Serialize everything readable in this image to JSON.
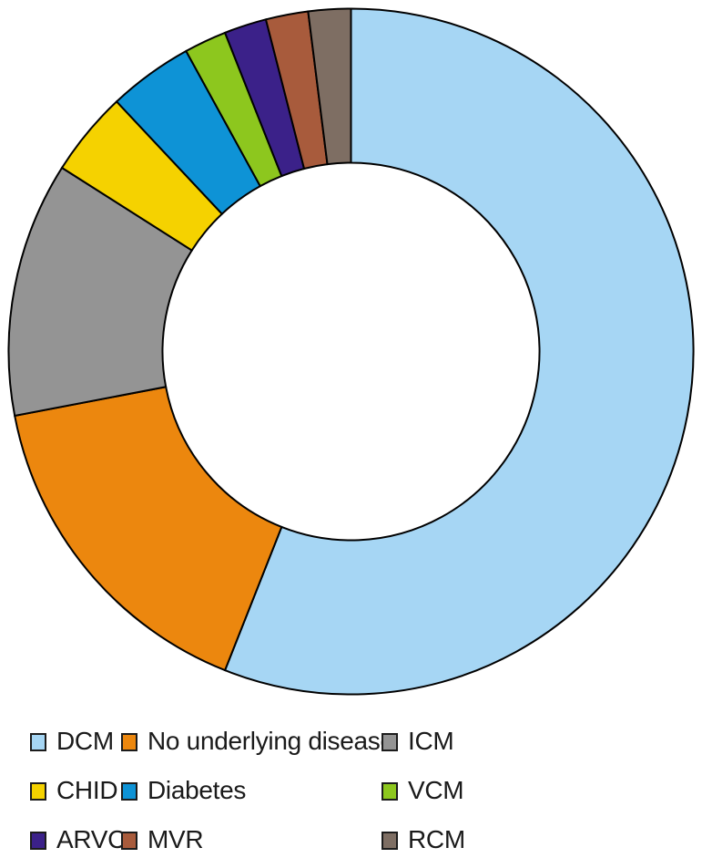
{
  "chart_data": {
    "type": "pie",
    "subtype": "donut",
    "title": "",
    "inner_radius_ratio": 0.55,
    "start_angle_deg": 0,
    "direction": "clockwise",
    "values_unit": "percent of circle (estimated from arc angles; no numeric labels shown in figure)",
    "outline_color": "#000000",
    "legend_position": "bottom",
    "legend_columns": 3,
    "series": [
      {
        "label": "DCM",
        "value": 56,
        "color": "#A6D6F4"
      },
      {
        "label": "No underlying disease",
        "value": 16,
        "color": "#EC870E"
      },
      {
        "label": "ICM",
        "value": 12,
        "color": "#949494"
      },
      {
        "label": "CHID",
        "value": 4,
        "color": "#F5D200"
      },
      {
        "label": "Diabetes",
        "value": 4,
        "color": "#0E93D6"
      },
      {
        "label": "VCM",
        "value": 2,
        "color": "#8DC71E"
      },
      {
        "label": "ARVC",
        "value": 2,
        "color": "#3B2189"
      },
      {
        "label": "MVR",
        "value": 2,
        "color": "#A85B3C"
      },
      {
        "label": "RCM",
        "value": 2,
        "color": "#7E6E63"
      }
    ]
  },
  "legend": {
    "items": [
      {
        "label": "DCM",
        "color": "#A6D6F4"
      },
      {
        "label": "No underlying disease",
        "color": "#EC870E"
      },
      {
        "label": "ICM",
        "color": "#949494"
      },
      {
        "label": "CHID",
        "color": "#F5D200"
      },
      {
        "label": "Diabetes",
        "color": "#0E93D6"
      },
      {
        "label": "VCM",
        "color": "#8DC71E"
      },
      {
        "label": "ARVC",
        "color": "#3B2189"
      },
      {
        "label": "MVR",
        "color": "#A85B3C"
      },
      {
        "label": "RCM",
        "color": "#7E6E63"
      }
    ]
  },
  "colors": {
    "background": "#FFFFFF",
    "outline": "#000000",
    "text": "#1A1A1A"
  }
}
